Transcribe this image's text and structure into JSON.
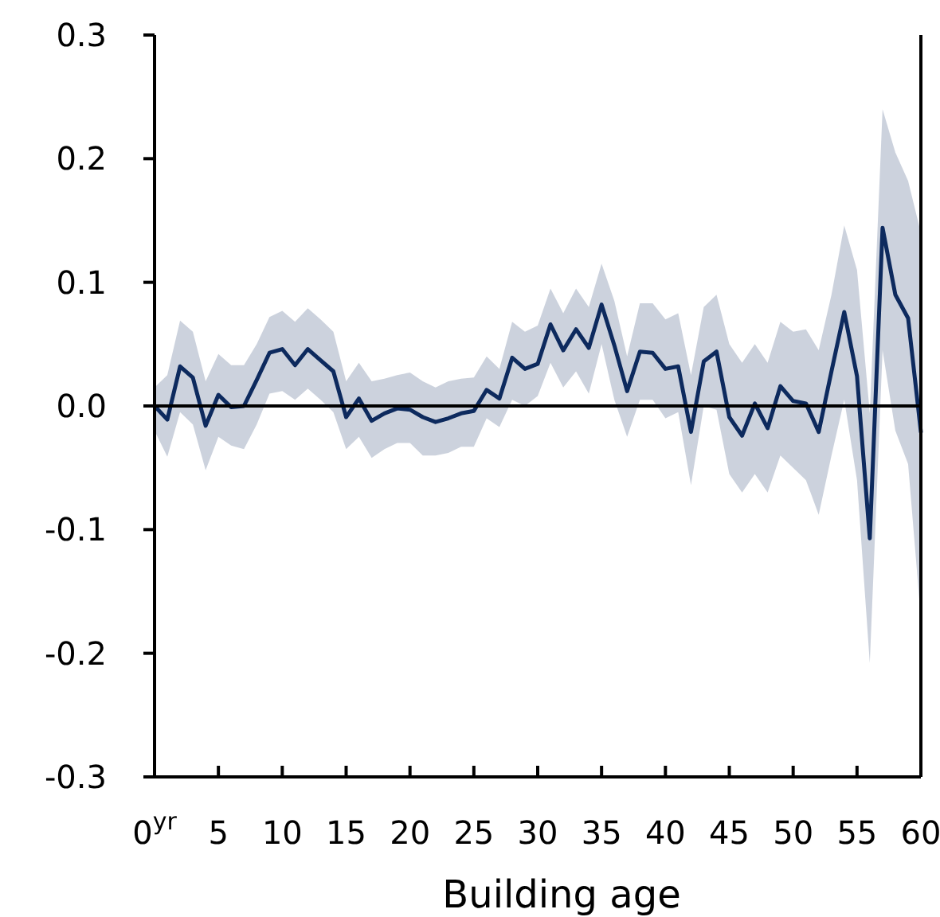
{
  "chart_data": {
    "type": "line",
    "xlabel": "Building age",
    "x": [
      0,
      1,
      2,
      3,
      4,
      5,
      6,
      7,
      8,
      9,
      10,
      11,
      12,
      13,
      14,
      15,
      16,
      17,
      18,
      19,
      20,
      21,
      22,
      23,
      24,
      25,
      26,
      27,
      28,
      29,
      30,
      31,
      32,
      33,
      34,
      35,
      36,
      37,
      38,
      39,
      40,
      41,
      42,
      43,
      44,
      45,
      46,
      47,
      48,
      49,
      50,
      51,
      52,
      53,
      54,
      55,
      56,
      57,
      58,
      59,
      60
    ],
    "series": [
      {
        "color": "#0d2a5e",
        "values": [
          0.0,
          -0.011,
          0.032,
          0.023,
          -0.016,
          0.009,
          -0.001,
          0.0,
          0.021,
          0.043,
          0.046,
          0.033,
          0.046,
          0.037,
          0.028,
          -0.009,
          0.006,
          -0.012,
          -0.006,
          -0.002,
          -0.003,
          -0.009,
          -0.013,
          -0.01,
          -0.006,
          -0.004,
          0.013,
          0.006,
          0.039,
          0.03,
          0.034,
          0.066,
          0.045,
          0.062,
          0.047,
          0.082,
          0.049,
          0.012,
          0.044,
          0.043,
          0.03,
          0.032,
          -0.021,
          0.036,
          0.044,
          -0.009,
          -0.024,
          0.002,
          -0.018,
          0.016,
          0.004,
          0.002,
          -0.021,
          0.028,
          0.076,
          0.024,
          -0.107,
          0.144,
          0.09,
          0.071,
          -0.021
        ],
        "lower": [
          -0.02,
          -0.041,
          -0.005,
          -0.015,
          -0.052,
          -0.025,
          -0.032,
          -0.035,
          -0.015,
          0.01,
          0.012,
          0.005,
          0.014,
          0.005,
          -0.005,
          -0.035,
          -0.025,
          -0.042,
          -0.035,
          -0.03,
          -0.03,
          -0.04,
          -0.04,
          -0.038,
          -0.033,
          -0.033,
          -0.01,
          -0.017,
          0.005,
          0.0,
          0.008,
          0.035,
          0.015,
          0.028,
          0.01,
          0.05,
          0.005,
          -0.025,
          0.005,
          0.005,
          -0.01,
          -0.005,
          -0.064,
          0.0,
          -0.003,
          -0.055,
          -0.07,
          -0.055,
          -0.07,
          -0.04,
          -0.05,
          -0.06,
          -0.088,
          -0.04,
          0.005,
          -0.06,
          -0.208,
          0.045,
          -0.02,
          -0.047,
          -0.172
        ],
        "upper": [
          0.015,
          0.025,
          0.069,
          0.06,
          0.02,
          0.042,
          0.033,
          0.033,
          0.05,
          0.072,
          0.077,
          0.068,
          0.079,
          0.07,
          0.06,
          0.02,
          0.035,
          0.02,
          0.022,
          0.025,
          0.027,
          0.02,
          0.015,
          0.02,
          0.022,
          0.023,
          0.04,
          0.03,
          0.068,
          0.06,
          0.065,
          0.095,
          0.075,
          0.095,
          0.08,
          0.115,
          0.085,
          0.04,
          0.083,
          0.083,
          0.07,
          0.075,
          0.025,
          0.08,
          0.09,
          0.05,
          0.035,
          0.05,
          0.035,
          0.068,
          0.06,
          0.062,
          0.045,
          0.09,
          0.146,
          0.11,
          -0.006,
          0.24,
          0.205,
          0.182,
          0.14
        ]
      }
    ],
    "xlim": [
      0,
      60
    ],
    "xticks": [
      {
        "value": 0,
        "label": "0$^{yr}$"
      },
      5,
      10,
      15,
      20,
      25,
      30,
      35,
      40,
      45,
      50,
      55,
      60
    ],
    "ylim": [
      -0.3,
      0.3
    ],
    "yticks": [
      0.3,
      0.2,
      0.1,
      {
        "value": 0,
        "label": "0.0"
      },
      -0.1,
      -0.2,
      -0.3
    ],
    "ref_lines": [
      {
        "axis": "y",
        "value": 0,
        "color": "#000000"
      }
    ],
    "grid": false,
    "marker": "none",
    "line_style": "solid"
  }
}
